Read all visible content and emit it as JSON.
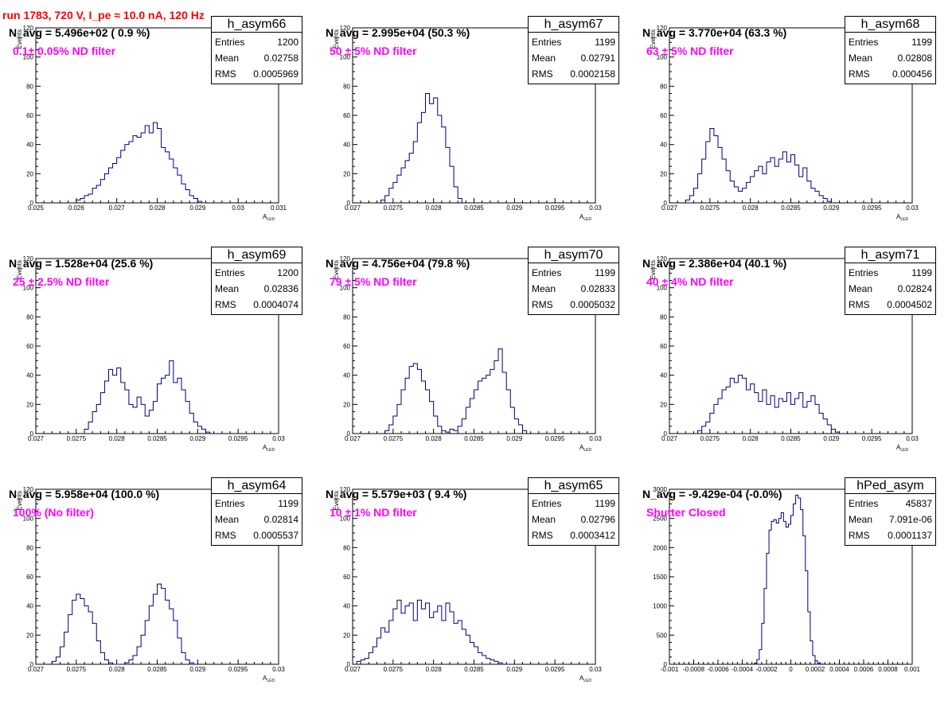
{
  "header": {
    "title": "run 1783,   720 V, I_pe ≈ 10.0 nA, 120 Hz"
  },
  "stats_labels": {
    "entries": "Entries",
    "mean": "Mean",
    "rms": "RMS"
  },
  "colors": {
    "histogram": "#000080",
    "header": "#ff0000",
    "filter_label": "#ff00ff"
  },
  "chart_data": [
    {
      "type": "bar",
      "name": "h_asym66",
      "n_avg_label": "N_avg = 5.496e+02 ( 0.9 %)",
      "filter_label": "0.1± 0.05% ND filter",
      "stats": {
        "entries": "1200",
        "mean": "0.02758",
        "rms": "0.0005969"
      },
      "xlabel": "A_LED",
      "ylabel": "Events",
      "xlim": [
        0.025,
        0.031
      ],
      "ylim": [
        0,
        120
      ],
      "xticks": [
        "0.025",
        "0.026",
        "0.027",
        "0.028",
        "0.029",
        "0.03",
        "0.031"
      ],
      "yticks": [
        "0",
        "20",
        "40",
        "60",
        "80",
        "100",
        "120"
      ],
      "bin_width": 0.0001,
      "x": [
        0.026,
        0.0261,
        0.0262,
        0.0263,
        0.0264,
        0.0265,
        0.0266,
        0.0267,
        0.0268,
        0.0269,
        0.027,
        0.0271,
        0.0272,
        0.0273,
        0.0274,
        0.0275,
        0.0276,
        0.0277,
        0.0278,
        0.0279,
        0.028,
        0.0281,
        0.0282,
        0.0283,
        0.0284,
        0.0285,
        0.0286,
        0.0287,
        0.0288,
        0.0289,
        0.029
      ],
      "values": [
        2,
        3,
        5,
        6,
        10,
        12,
        16,
        20,
        24,
        27,
        31,
        36,
        40,
        42,
        46,
        45,
        48,
        53,
        48,
        55,
        51,
        38,
        35,
        30,
        24,
        19,
        13,
        9,
        5,
        3,
        1
      ]
    },
    {
      "type": "bar",
      "name": "h_asym67",
      "n_avg_label": "N_avg = 2.995e+04 (50.3 %)",
      "filter_label": "50 ± 5% ND filter",
      "stats": {
        "entries": "1199",
        "mean": "0.02791",
        "rms": "0.0002158"
      },
      "xlabel": "A_LED",
      "ylabel": "Events",
      "xlim": [
        0.027,
        0.03
      ],
      "ylim": [
        0,
        120
      ],
      "xticks": [
        "0.027",
        "0.0275",
        "0.028",
        "0.0285",
        "0.029",
        "0.0295",
        "0.03"
      ],
      "yticks": [
        "0",
        "20",
        "40",
        "60",
        "80",
        "100",
        "120"
      ],
      "bin_width": 5e-05,
      "x": [
        0.02735,
        0.0274,
        0.02745,
        0.0275,
        0.02755,
        0.0276,
        0.02765,
        0.0277,
        0.02775,
        0.0278,
        0.02785,
        0.0279,
        0.02795,
        0.028,
        0.02805,
        0.0281,
        0.02815,
        0.0282,
        0.02825,
        0.0283
      ],
      "values": [
        2,
        5,
        10,
        14,
        19,
        24,
        29,
        34,
        42,
        55,
        62,
        75,
        68,
        72,
        60,
        52,
        38,
        25,
        11,
        3
      ]
    },
    {
      "type": "bar",
      "name": "h_asym68",
      "n_avg_label": "N_avg = 3.770e+04 (63.3 %)",
      "filter_label": "63 ± 5% ND filter",
      "stats": {
        "entries": "1199",
        "mean": "0.02808",
        "rms": "0.000456"
      },
      "xlabel": "A_LED",
      "ylabel": "Events",
      "xlim": [
        0.027,
        0.03
      ],
      "ylim": [
        0,
        120
      ],
      "xticks": [
        "0.027",
        "0.0275",
        "0.028",
        "0.0285",
        "0.029",
        "0.0295",
        "0.03"
      ],
      "yticks": [
        "0",
        "20",
        "40",
        "60",
        "80",
        "100",
        "120"
      ],
      "bin_width": 5e-05,
      "x": [
        0.0272,
        0.02725,
        0.0273,
        0.02735,
        0.0274,
        0.02745,
        0.0275,
        0.02755,
        0.0276,
        0.02765,
        0.0277,
        0.02775,
        0.0278,
        0.02785,
        0.0279,
        0.02795,
        0.028,
        0.02805,
        0.0281,
        0.02815,
        0.0282,
        0.02825,
        0.0283,
        0.02835,
        0.0284,
        0.02845,
        0.0285,
        0.02855,
        0.0286,
        0.02865,
        0.0287,
        0.02875,
        0.0288,
        0.02885,
        0.0289,
        0.02895
      ],
      "values": [
        2,
        5,
        10,
        20,
        30,
        42,
        51,
        46,
        38,
        30,
        22,
        15,
        11,
        8,
        10,
        14,
        18,
        22,
        25,
        20,
        28,
        31,
        25,
        30,
        35,
        28,
        33,
        26,
        18,
        24,
        15,
        10,
        8,
        5,
        3,
        1
      ]
    },
    {
      "type": "bar",
      "name": "h_asym69",
      "n_avg_label": "N_avg = 1.528e+04 (25.6 %)",
      "filter_label": "25 ± 2.5% ND filter",
      "stats": {
        "entries": "1200",
        "mean": "0.02836",
        "rms": "0.0004074"
      },
      "xlabel": "A_LED",
      "ylabel": "Events",
      "xlim": [
        0.027,
        0.03
      ],
      "ylim": [
        0,
        120
      ],
      "xticks": [
        "0.027",
        "0.0275",
        "0.028",
        "0.0285",
        "0.029",
        "0.0295",
        "0.03"
      ],
      "yticks": [
        "0",
        "20",
        "40",
        "60",
        "80",
        "100",
        "120"
      ],
      "bin_width": 5e-05,
      "x": [
        0.0276,
        0.02765,
        0.0277,
        0.02775,
        0.0278,
        0.02785,
        0.0279,
        0.02795,
        0.028,
        0.02805,
        0.0281,
        0.02815,
        0.0282,
        0.02825,
        0.0283,
        0.02835,
        0.0284,
        0.02845,
        0.0285,
        0.02855,
        0.0286,
        0.02865,
        0.0287,
        0.02875,
        0.0288,
        0.02885,
        0.0289,
        0.02895,
        0.029,
        0.02905,
        0.0291
      ],
      "values": [
        3,
        8,
        15,
        20,
        28,
        36,
        44,
        40,
        45,
        35,
        30,
        20,
        18,
        25,
        20,
        12,
        16,
        22,
        34,
        38,
        40,
        50,
        35,
        38,
        30,
        22,
        14,
        8,
        5,
        3,
        1
      ]
    },
    {
      "type": "bar",
      "name": "h_asym70",
      "n_avg_label": "N_avg = 4.756e+04 (79.8 %)",
      "filter_label": "79 ± 5% ND filter",
      "stats": {
        "entries": "1199",
        "mean": "0.02833",
        "rms": "0.0005032"
      },
      "xlabel": "A_LED",
      "ylabel": "Events",
      "xlim": [
        0.027,
        0.03
      ],
      "ylim": [
        0,
        120
      ],
      "xticks": [
        "0.027",
        "0.0275",
        "0.028",
        "0.0285",
        "0.029",
        "0.0295",
        "0.03"
      ],
      "yticks": [
        "0",
        "20",
        "40",
        "60",
        "80",
        "100",
        "120"
      ],
      "bin_width": 5e-05,
      "x": [
        0.0274,
        0.02745,
        0.0275,
        0.02755,
        0.0276,
        0.02765,
        0.0277,
        0.02775,
        0.0278,
        0.02785,
        0.0279,
        0.02795,
        0.028,
        0.02805,
        0.0281,
        0.02815,
        0.0282,
        0.02825,
        0.0283,
        0.02835,
        0.0284,
        0.02845,
        0.0285,
        0.02855,
        0.0286,
        0.02865,
        0.0287,
        0.02875,
        0.0288,
        0.02885,
        0.0289,
        0.02895,
        0.029,
        0.02905,
        0.0291
      ],
      "values": [
        2,
        6,
        12,
        20,
        30,
        38,
        46,
        48,
        44,
        36,
        30,
        22,
        12,
        5,
        2,
        1,
        3,
        2,
        5,
        10,
        18,
        24,
        30,
        36,
        38,
        40,
        44,
        50,
        58,
        42,
        30,
        18,
        10,
        6,
        2
      ]
    },
    {
      "type": "bar",
      "name": "h_asym71",
      "n_avg_label": "N_avg = 2.386e+04 (40.1 %)",
      "filter_label": "40 ± 4% ND filter",
      "stats": {
        "entries": "1199",
        "mean": "0.02824",
        "rms": "0.0004502"
      },
      "xlabel": "A_LED",
      "ylabel": "Events",
      "xlim": [
        0.027,
        0.03
      ],
      "ylim": [
        0,
        120
      ],
      "xticks": [
        "0.027",
        "0.0275",
        "0.028",
        "0.0285",
        "0.029",
        "0.0295",
        "0.03"
      ],
      "yticks": [
        "0",
        "20",
        "40",
        "60",
        "80",
        "100",
        "120"
      ],
      "bin_width": 5e-05,
      "x": [
        0.02735,
        0.0274,
        0.02745,
        0.0275,
        0.02755,
        0.0276,
        0.02765,
        0.0277,
        0.02775,
        0.0278,
        0.02785,
        0.0279,
        0.02795,
        0.028,
        0.02805,
        0.0281,
        0.02815,
        0.0282,
        0.02825,
        0.0283,
        0.02835,
        0.0284,
        0.02845,
        0.0285,
        0.02855,
        0.0286,
        0.02865,
        0.0287,
        0.02875,
        0.0288,
        0.02885,
        0.0289,
        0.02895,
        0.029,
        0.02905
      ],
      "values": [
        2,
        5,
        8,
        14,
        20,
        24,
        30,
        32,
        38,
        35,
        40,
        38,
        30,
        34,
        28,
        22,
        30,
        20,
        26,
        18,
        24,
        22,
        28,
        20,
        24,
        28,
        18,
        22,
        26,
        20,
        14,
        10,
        6,
        3,
        1
      ]
    },
    {
      "type": "bar",
      "name": "h_asym64",
      "n_avg_label": "N_avg = 5.958e+04 (100.0 %)",
      "filter_label": "100% (No filter)",
      "stats": {
        "entries": "1199",
        "mean": "0.02814",
        "rms": "0.0005537"
      },
      "xlabel": "A_LED",
      "ylabel": "Events",
      "xlim": [
        0.027,
        0.03
      ],
      "ylim": [
        0,
        120
      ],
      "xticks": [
        "0.027",
        "0.0275",
        "0.028",
        "0.0285",
        "0.029",
        "0.0295",
        "0.03"
      ],
      "yticks": [
        "0",
        "20",
        "40",
        "60",
        "80",
        "100",
        "120"
      ],
      "bin_width": 5e-05,
      "x": [
        0.0272,
        0.02725,
        0.0273,
        0.02735,
        0.0274,
        0.02745,
        0.0275,
        0.02755,
        0.0276,
        0.02765,
        0.0277,
        0.02775,
        0.0278,
        0.02785,
        0.0279,
        0.02795,
        0.028,
        0.02805,
        0.0281,
        0.02815,
        0.0282,
        0.02825,
        0.0283,
        0.02835,
        0.0284,
        0.02845,
        0.0285,
        0.02855,
        0.0286,
        0.02865,
        0.0287,
        0.02875,
        0.0288,
        0.02885,
        0.0289,
        0.02895
      ],
      "values": [
        2,
        5,
        12,
        22,
        34,
        44,
        48,
        45,
        40,
        36,
        28,
        16,
        8,
        3,
        1,
        0,
        0,
        0,
        1,
        3,
        6,
        12,
        20,
        30,
        40,
        48,
        55,
        52,
        44,
        38,
        30,
        18,
        8,
        3,
        1,
        0
      ]
    },
    {
      "type": "bar",
      "name": "h_asym65",
      "n_avg_label": "N_avg = 5.579e+03 ( 9.4 %)",
      "filter_label": "10 ± 1% ND filter",
      "stats": {
        "entries": "1199",
        "mean": "0.02796",
        "rms": "0.0003412"
      },
      "xlabel": "A_LED",
      "ylabel": "Events",
      "xlim": [
        0.027,
        0.03
      ],
      "ylim": [
        0,
        120
      ],
      "xticks": [
        "0.027",
        "0.0275",
        "0.028",
        "0.0285",
        "0.029",
        "0.0295",
        "0.03"
      ],
      "yticks": [
        "0",
        "20",
        "40",
        "60",
        "80",
        "100",
        "120"
      ],
      "bin_width": 5e-05,
      "x": [
        0.02705,
        0.0271,
        0.02715,
        0.0272,
        0.02725,
        0.0273,
        0.02735,
        0.0274,
        0.02745,
        0.0275,
        0.02755,
        0.0276,
        0.02765,
        0.0277,
        0.02775,
        0.0278,
        0.02785,
        0.0279,
        0.02795,
        0.028,
        0.02805,
        0.0281,
        0.02815,
        0.0282,
        0.02825,
        0.0283,
        0.02835,
        0.0284,
        0.02845,
        0.0285,
        0.02855,
        0.0286,
        0.02865,
        0.0287,
        0.02875,
        0.0288
      ],
      "values": [
        2,
        3,
        4,
        8,
        12,
        18,
        25,
        22,
        30,
        38,
        44,
        35,
        40,
        42,
        30,
        44,
        38,
        42,
        32,
        36,
        40,
        30,
        42,
        36,
        28,
        30,
        24,
        20,
        15,
        12,
        8,
        6,
        4,
        3,
        2,
        1
      ]
    },
    {
      "type": "bar",
      "name": "hPed_asym",
      "n_avg_label": "N_avg = -9.429e-04 (-0.0%)",
      "filter_label": "Shutter Closed",
      "stats": {
        "entries": "45837",
        "mean": "7.091e-06",
        "rms": "0.0001137"
      },
      "xlabel": "",
      "ylabel": "",
      "xlim": [
        -0.001,
        0.001
      ],
      "ylim": [
        0,
        3000
      ],
      "xticks": [
        "-0.001",
        "-0.0008",
        "-0.0006",
        "-0.0004",
        "-0.0002",
        "0",
        "0.0002",
        "0.0004",
        "0.0006",
        "0.0008",
        "0.001"
      ],
      "yticks": [
        "0",
        "500",
        "1000",
        "1500",
        "2000",
        "2500",
        "3000"
      ],
      "bin_width": 2e-05,
      "x": [
        -0.0003,
        -0.00028,
        -0.00026,
        -0.00024,
        -0.00022,
        -0.0002,
        -0.00018,
        -0.00016,
        -0.00014,
        -0.00012,
        -0.0001,
        -8e-05,
        -6e-05,
        -4e-05,
        -2e-05,
        0.0,
        2e-05,
        4e-05,
        6e-05,
        8e-05,
        0.0001,
        0.00012,
        0.00014,
        0.00016,
        0.00018,
        0.0002,
        0.00022,
        0.00024,
        0.00026
      ],
      "values": [
        20,
        80,
        250,
        700,
        1300,
        1900,
        2300,
        2450,
        2480,
        2420,
        2500,
        2600,
        2450,
        2350,
        2400,
        2550,
        2750,
        2900,
        2850,
        2650,
        2200,
        1600,
        900,
        400,
        150,
        60,
        20,
        5,
        2
      ]
    }
  ]
}
